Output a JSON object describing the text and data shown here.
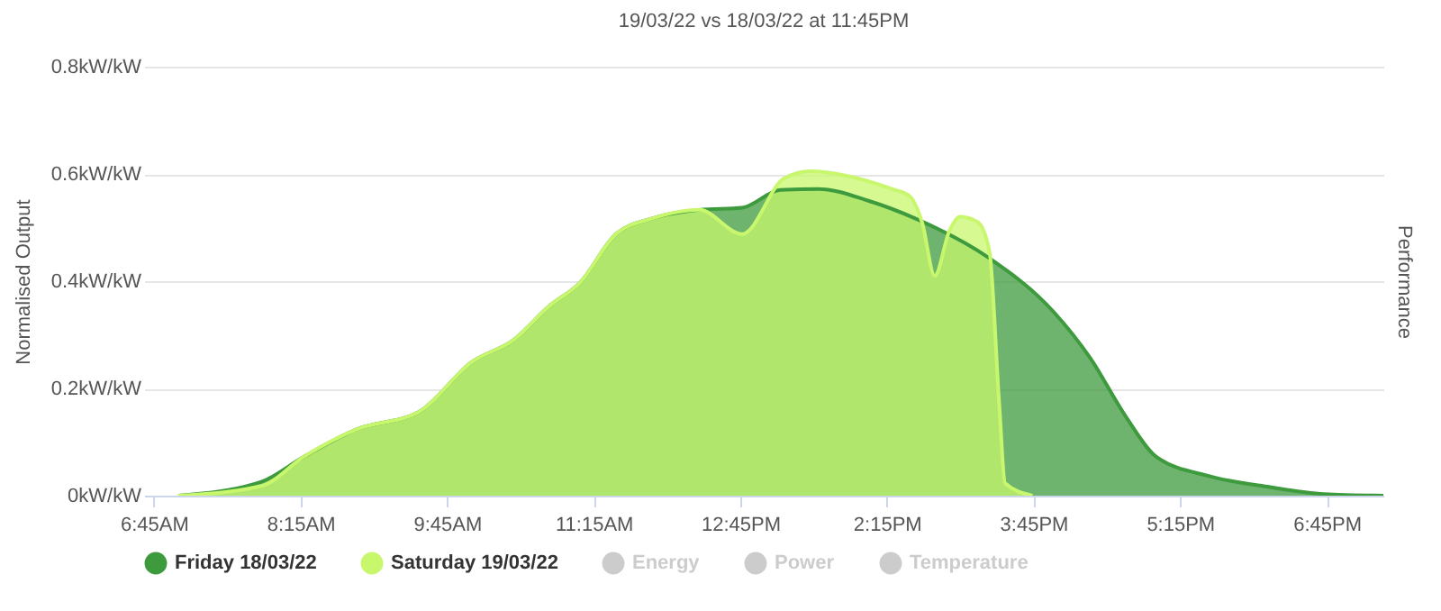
{
  "chart_data": {
    "type": "area",
    "title": "19/03/22 vs 18/03/22 at 11:45PM",
    "ylabel": "Normalised Output",
    "y2label": "Performance",
    "xlim": [
      6.65,
      19.33
    ],
    "xticks": [
      {
        "value": 6.75,
        "label": "6:45AM"
      },
      {
        "value": 8.25,
        "label": "8:15AM"
      },
      {
        "value": 9.75,
        "label": "9:45AM"
      },
      {
        "value": 11.25,
        "label": "11:15AM"
      },
      {
        "value": 12.75,
        "label": "12:45PM"
      },
      {
        "value": 14.25,
        "label": "2:15PM"
      },
      {
        "value": 15.75,
        "label": "3:45PM"
      },
      {
        "value": 17.25,
        "label": "5:15PM"
      },
      {
        "value": 18.75,
        "label": "6:45PM"
      }
    ],
    "ylim": [
      0,
      0.8
    ],
    "yticks": [
      {
        "value": 0,
        "label": "0kW/kW"
      },
      {
        "value": 0.2,
        "label": "0.2kW/kW"
      },
      {
        "value": 0.4,
        "label": "0.4kW/kW"
      },
      {
        "value": 0.6,
        "label": "0.6kW/kW"
      },
      {
        "value": 0.8,
        "label": "0.8kW/kW"
      }
    ],
    "grid": "y",
    "legend": "bottom",
    "series": [
      {
        "name": "Friday 18/03/22",
        "color": "#3d9a3d",
        "x": [
          7.0,
          7.85,
          8.28,
          8.83,
          9.46,
          10.01,
          10.43,
          10.8,
          11.11,
          11.48,
          11.85,
          12.33,
          12.77,
          13.16,
          13.55,
          14.06,
          14.54,
          15.28,
          15.96,
          16.33,
          16.7,
          17.01,
          17.56,
          18.17,
          18.72,
          19.33
        ],
        "values": [
          0,
          0.026,
          0.072,
          0.124,
          0.156,
          0.25,
          0.29,
          0.354,
          0.397,
          0.488,
          0.517,
          0.533,
          0.537,
          0.57,
          0.572,
          0.55,
          0.517,
          0.445,
          0.342,
          0.257,
          0.146,
          0.072,
          0.036,
          0.016,
          0.003,
          0
        ]
      },
      {
        "name": "Saturday 19/03/22",
        "color": "#c8f76e",
        "x": [
          7.0,
          7.85,
          8.28,
          8.83,
          9.46,
          10.01,
          10.43,
          10.8,
          11.11,
          11.48,
          11.85,
          12.33,
          12.77,
          13.2,
          13.47,
          13.8,
          14.3,
          14.48,
          14.61,
          14.74,
          14.89,
          15.0,
          15.18,
          15.3,
          15.4,
          15.46,
          15.74
        ],
        "values": [
          0,
          0.018,
          0.072,
          0.124,
          0.156,
          0.25,
          0.29,
          0.354,
          0.397,
          0.488,
          0.517,
          0.533,
          0.488,
          0.592,
          0.605,
          0.598,
          0.572,
          0.559,
          0.51,
          0.41,
          0.494,
          0.52,
          0.51,
          0.455,
          0.17,
          0.023,
          0
        ]
      },
      {
        "name": "Energy",
        "color": "#cccccc"
      },
      {
        "name": "Power",
        "color": "#cccccc"
      },
      {
        "name": "Temperature",
        "color": "#cccccc"
      }
    ]
  }
}
